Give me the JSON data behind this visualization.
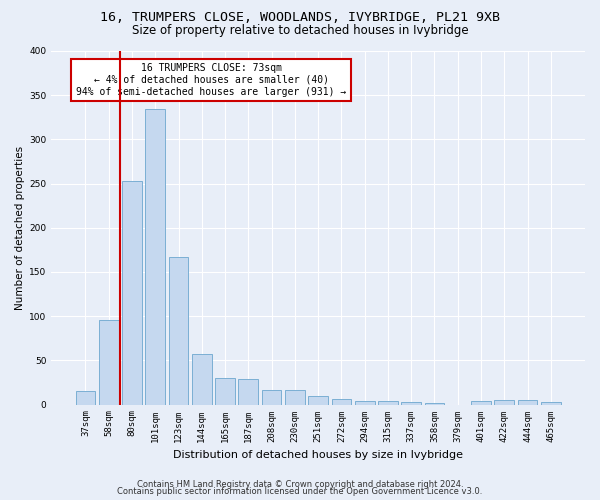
{
  "title_line1": "16, TRUMPERS CLOSE, WOODLANDS, IVYBRIDGE, PL21 9XB",
  "title_line2": "Size of property relative to detached houses in Ivybridge",
  "xlabel": "Distribution of detached houses by size in Ivybridge",
  "ylabel": "Number of detached properties",
  "categories": [
    "37sqm",
    "58sqm",
    "80sqm",
    "101sqm",
    "123sqm",
    "144sqm",
    "165sqm",
    "187sqm",
    "208sqm",
    "230sqm",
    "251sqm",
    "272sqm",
    "294sqm",
    "315sqm",
    "337sqm",
    "358sqm",
    "379sqm",
    "401sqm",
    "422sqm",
    "444sqm",
    "465sqm"
  ],
  "values": [
    15,
    96,
    253,
    334,
    167,
    57,
    30,
    29,
    17,
    17,
    10,
    6,
    4,
    4,
    3,
    2,
    0,
    4,
    5,
    5,
    3
  ],
  "bar_color": "#c5d8ef",
  "bar_edge_color": "#7bafd4",
  "vline_x": 1.5,
  "vline_color": "#cc0000",
  "annotation_text": "16 TRUMPERS CLOSE: 73sqm\n← 4% of detached houses are smaller (40)\n94% of semi-detached houses are larger (931) →",
  "annotation_box_color": "#ffffff",
  "annotation_box_edge_color": "#cc0000",
  "ylim": [
    0,
    400
  ],
  "yticks": [
    0,
    50,
    100,
    150,
    200,
    250,
    300,
    350,
    400
  ],
  "bg_color": "#e8eef8",
  "plot_bg_color": "#e8eef8",
  "footer_line1": "Contains HM Land Registry data © Crown copyright and database right 2024.",
  "footer_line2": "Contains public sector information licensed under the Open Government Licence v3.0.",
  "title_fontsize": 9.5,
  "subtitle_fontsize": 8.5,
  "ylabel_fontsize": 7.5,
  "xlabel_fontsize": 8,
  "tick_fontsize": 6.5,
  "annotation_fontsize": 7,
  "footer_fontsize": 6
}
